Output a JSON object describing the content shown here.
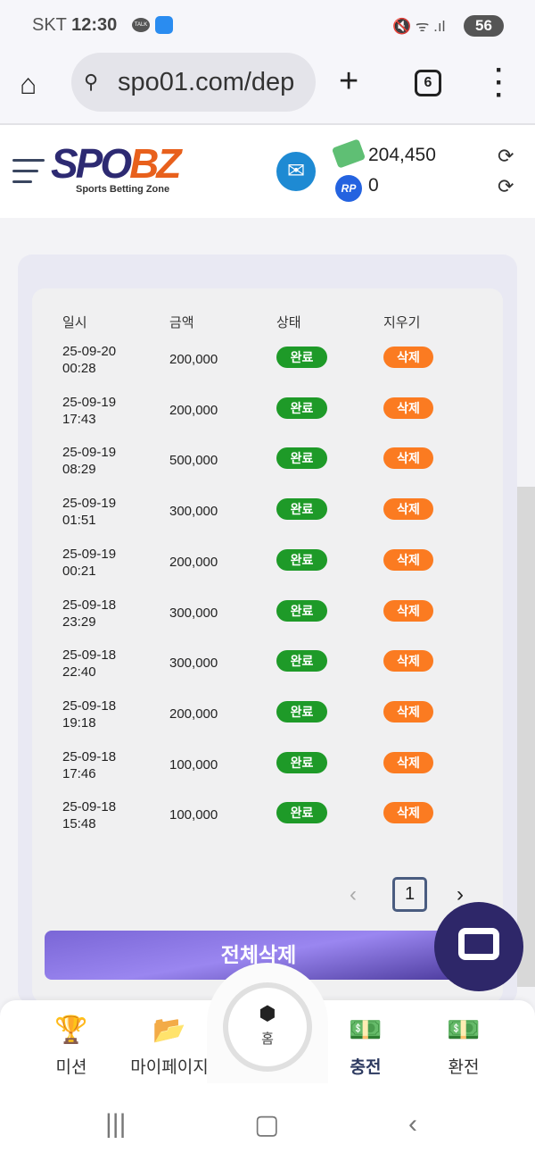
{
  "status_bar": {
    "carrier": "SKT",
    "time": "12:30",
    "talk_badge": "TALK",
    "battery": "56"
  },
  "browser": {
    "url": "spo01.com/dep",
    "tab_count": "6"
  },
  "header": {
    "logo_main_1": "SPO",
    "logo_main_2": "BZ",
    "logo_sub": "Sports Betting Zone",
    "cash_balance": "204,450",
    "rp_label": "RP",
    "rp_balance": "0"
  },
  "table": {
    "headers": [
      "일시",
      "금액",
      "상태",
      "지우기"
    ],
    "rows": [
      {
        "date": "25-09-20",
        "time": "00:28",
        "amount": "200,000",
        "status": "완료",
        "action": "삭제"
      },
      {
        "date": "25-09-19",
        "time": "17:43",
        "amount": "200,000",
        "status": "완료",
        "action": "삭제"
      },
      {
        "date": "25-09-19",
        "time": "08:29",
        "amount": "500,000",
        "status": "완료",
        "action": "삭제"
      },
      {
        "date": "25-09-19",
        "time": "01:51",
        "amount": "300,000",
        "status": "완료",
        "action": "삭제"
      },
      {
        "date": "25-09-19",
        "time": "00:21",
        "amount": "200,000",
        "status": "완료",
        "action": "삭제"
      },
      {
        "date": "25-09-18",
        "time": "23:29",
        "amount": "300,000",
        "status": "완료",
        "action": "삭제"
      },
      {
        "date": "25-09-18",
        "time": "22:40",
        "amount": "300,000",
        "status": "완료",
        "action": "삭제"
      },
      {
        "date": "25-09-18",
        "time": "19:18",
        "amount": "200,000",
        "status": "완료",
        "action": "삭제"
      },
      {
        "date": "25-09-18",
        "time": "17:46",
        "amount": "100,000",
        "status": "완료",
        "action": "삭제"
      },
      {
        "date": "25-09-18",
        "time": "15:48",
        "amount": "100,000",
        "status": "완료",
        "action": "삭제"
      }
    ]
  },
  "pagination": {
    "current": "1"
  },
  "delete_all_label": "전체삭제",
  "bottom_nav": {
    "mission": "미션",
    "mypage": "마이페이지",
    "home": "홈",
    "deposit": "충전",
    "withdraw": "환전"
  },
  "colors": {
    "status_green": "#1e9a28",
    "delete_orange": "#fb7b21",
    "accent_purple": "#7a66d6"
  }
}
